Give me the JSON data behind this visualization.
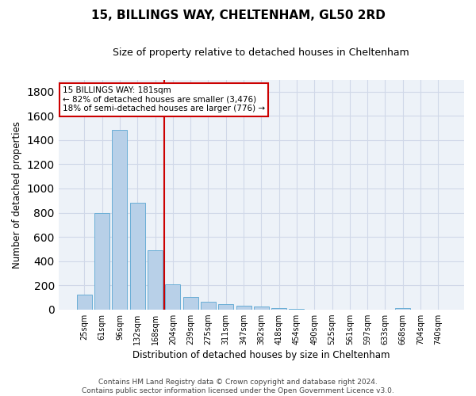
{
  "title1": "15, BILLINGS WAY, CHELTENHAM, GL50 2RD",
  "title2": "Size of property relative to detached houses in Cheltenham",
  "xlabel": "Distribution of detached houses by size in Cheltenham",
  "ylabel": "Number of detached properties",
  "footer1": "Contains HM Land Registry data © Crown copyright and database right 2024.",
  "footer2": "Contains public sector information licensed under the Open Government Licence v3.0.",
  "categories": [
    "25sqm",
    "61sqm",
    "96sqm",
    "132sqm",
    "168sqm",
    "204sqm",
    "239sqm",
    "275sqm",
    "311sqm",
    "347sqm",
    "382sqm",
    "418sqm",
    "454sqm",
    "490sqm",
    "525sqm",
    "561sqm",
    "597sqm",
    "633sqm",
    "668sqm",
    "704sqm",
    "740sqm"
  ],
  "values": [
    125,
    800,
    1487,
    882,
    490,
    205,
    103,
    65,
    42,
    33,
    27,
    10,
    5,
    0,
    0,
    0,
    0,
    0,
    10,
    0,
    0
  ],
  "bar_color": "#b8d0e8",
  "bar_edge_color": "#6aaed6",
  "grid_color": "#d0d8e8",
  "vline_x": 4.5,
  "vline_color": "#cc0000",
  "annotation_line1": "15 BILLINGS WAY: 181sqm",
  "annotation_line2": "← 82% of detached houses are smaller (3,476)",
  "annotation_line3": "18% of semi-detached houses are larger (776) →",
  "annotation_box_color": "#cc0000",
  "ylim": [
    0,
    1900
  ],
  "yticks": [
    0,
    200,
    400,
    600,
    800,
    1000,
    1200,
    1400,
    1600,
    1800
  ],
  "bg_color": "#edf2f8",
  "figsize": [
    6.0,
    5.0
  ],
  "dpi": 100
}
